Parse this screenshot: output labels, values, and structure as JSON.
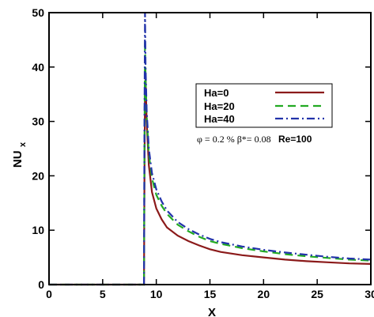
{
  "chart_data": {
    "type": "line",
    "title": "",
    "xlabel": "X",
    "ylabel": "NU",
    "ylabel_sub": "x",
    "xlim": [
      0,
      30
    ],
    "ylim": [
      0,
      50
    ],
    "x_ticks": [
      0,
      5,
      10,
      15,
      20,
      25,
      30
    ],
    "y_ticks": [
      0,
      10,
      20,
      30,
      40,
      50
    ],
    "x_tick_labels": [
      "0",
      "5",
      "10",
      "15",
      "20",
      "25",
      "30"
    ],
    "y_tick_labels": [
      "0",
      "10",
      "20",
      "30",
      "40",
      "50"
    ],
    "grid": false,
    "legend_position": "center-right",
    "annotation": {
      "text": "φ = 0.2 % β*= 0.08",
      "bold": "Re=100"
    },
    "series": [
      {
        "name": "Ha=0",
        "color": "#8b1a1a",
        "dash": "solid",
        "points": [
          [
            0,
            0
          ],
          [
            8.85,
            0
          ],
          [
            8.9,
            20
          ],
          [
            8.95,
            36
          ],
          [
            9.0,
            38
          ],
          [
            9.1,
            30
          ],
          [
            9.3,
            22
          ],
          [
            9.6,
            17
          ],
          [
            10.0,
            14
          ],
          [
            10.5,
            12
          ],
          [
            11.0,
            10.5
          ],
          [
            12.0,
            9
          ],
          [
            13.0,
            8
          ],
          [
            14.0,
            7.2
          ],
          [
            15.0,
            6.5
          ],
          [
            16.0,
            6.0
          ],
          [
            18.0,
            5.4
          ],
          [
            20.0,
            5.0
          ],
          [
            22.0,
            4.6
          ],
          [
            24.0,
            4.3
          ],
          [
            26.0,
            4.1
          ],
          [
            28.0,
            3.9
          ],
          [
            30.0,
            3.8
          ]
        ]
      },
      {
        "name": "Ha=20",
        "color": "#22aa22",
        "dash": "dash",
        "points": [
          [
            0,
            0
          ],
          [
            8.85,
            0
          ],
          [
            8.9,
            25
          ],
          [
            8.95,
            45
          ],
          [
            9.0,
            38
          ],
          [
            9.1,
            31
          ],
          [
            9.3,
            24
          ],
          [
            9.6,
            19.5
          ],
          [
            10.0,
            16.5
          ],
          [
            10.5,
            14.5
          ],
          [
            11.0,
            13
          ],
          [
            12.0,
            11
          ],
          [
            13.0,
            9.8
          ],
          [
            14.0,
            8.8
          ],
          [
            15.0,
            8.0
          ],
          [
            16.0,
            7.5
          ],
          [
            18.0,
            6.7
          ],
          [
            20.0,
            6.1
          ],
          [
            22.0,
            5.6
          ],
          [
            24.0,
            5.2
          ],
          [
            26.0,
            4.9
          ],
          [
            28.0,
            4.6
          ],
          [
            30.0,
            4.4
          ]
        ]
      },
      {
        "name": "Ha=40",
        "color": "#2233aa",
        "dash": "dashdot",
        "points": [
          [
            0,
            0
          ],
          [
            8.85,
            0
          ],
          [
            8.9,
            30
          ],
          [
            8.95,
            50
          ],
          [
            9.0,
            40
          ],
          [
            9.1,
            32
          ],
          [
            9.3,
            25
          ],
          [
            9.6,
            20.5
          ],
          [
            10.0,
            17.5
          ],
          [
            10.5,
            15.3
          ],
          [
            11.0,
            13.6
          ],
          [
            12.0,
            11.5
          ],
          [
            13.0,
            10.2
          ],
          [
            14.0,
            9.2
          ],
          [
            15.0,
            8.4
          ],
          [
            16.0,
            7.8
          ],
          [
            18.0,
            7.0
          ],
          [
            20.0,
            6.4
          ],
          [
            22.0,
            5.9
          ],
          [
            24.0,
            5.5
          ],
          [
            26.0,
            5.1
          ],
          [
            28.0,
            4.8
          ],
          [
            30.0,
            4.6
          ]
        ]
      }
    ]
  }
}
